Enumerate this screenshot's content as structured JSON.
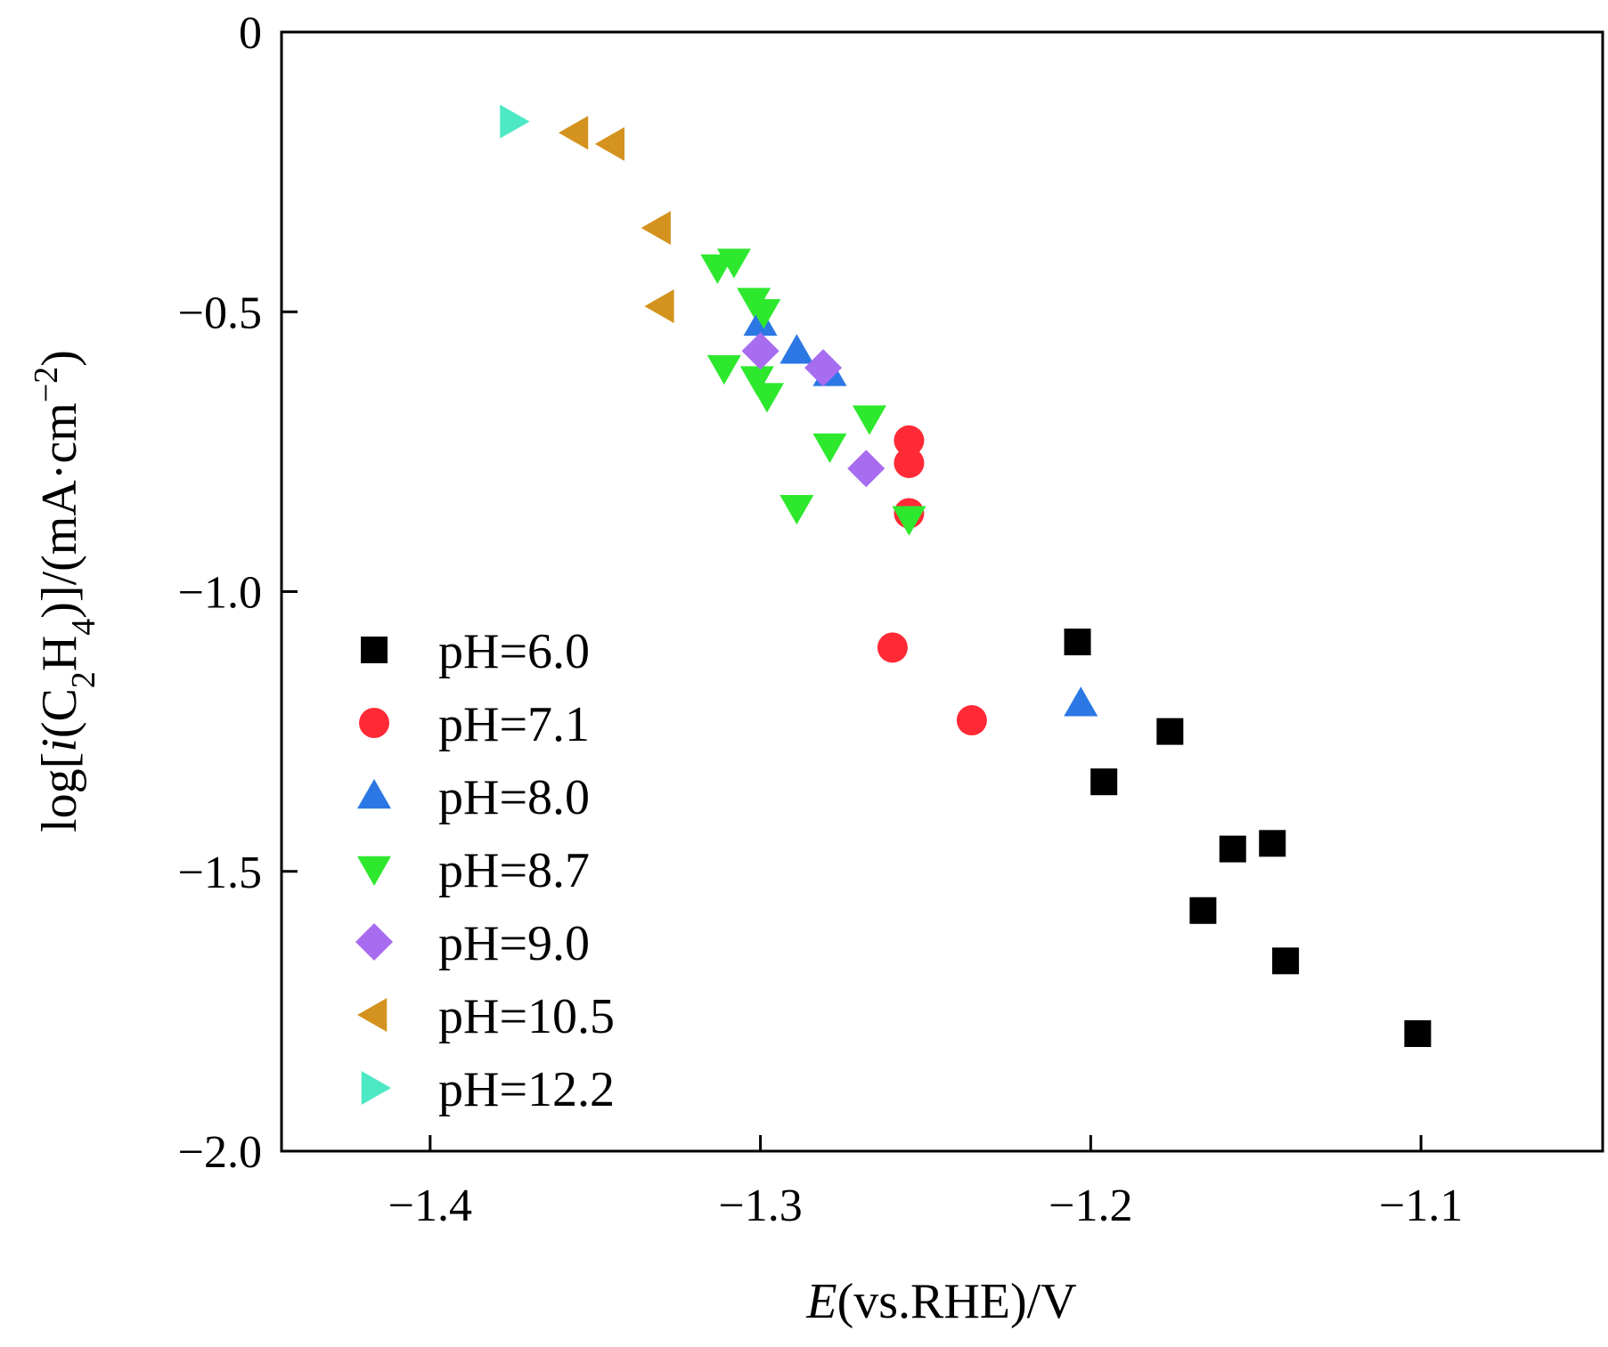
{
  "chart_data": {
    "type": "scatter",
    "xlabel": {
      "italic": "E",
      "rest": "(vs.RHE)/V"
    },
    "ylabel": {
      "prefix": "log[",
      "italic": "i",
      "open": "(C",
      "sub1": "2",
      "mid": "H",
      "sub2": "4",
      "close": ")]/(mA·cm",
      "sup": "−2",
      "end": ")"
    },
    "xlim": [
      -1.445,
      -1.045
    ],
    "ylim": [
      -2.0,
      0
    ],
    "x_ticks": [
      -1.4,
      -1.3,
      -1.2,
      -1.1
    ],
    "x_tick_labels": [
      "−1.4",
      "−1.3",
      "−1.2",
      "−1.1"
    ],
    "y_ticks": [
      0,
      -0.5,
      -1.0,
      -1.5,
      -2.0
    ],
    "y_tick_labels": [
      "0",
      "−0.5",
      "−1.0",
      "−1.5",
      "−2.0"
    ],
    "grid": false,
    "legend_position": "lower-left",
    "series": [
      {
        "name": "pH=6.0",
        "marker": "square",
        "color": "#000000",
        "points": [
          [
            -1.204,
            -1.09
          ],
          [
            -1.196,
            -1.34
          ],
          [
            -1.176,
            -1.25
          ],
          [
            -1.166,
            -1.57
          ],
          [
            -1.157,
            -1.46
          ],
          [
            -1.145,
            -1.45
          ],
          [
            -1.141,
            -1.66
          ],
          [
            -1.101,
            -1.79
          ]
        ]
      },
      {
        "name": "pH=7.1",
        "marker": "circle",
        "color": "#ff2a35",
        "points": [
          [
            -1.255,
            -0.73
          ],
          [
            -1.255,
            -0.77
          ],
          [
            -1.255,
            -0.86
          ],
          [
            -1.26,
            -1.1
          ],
          [
            -1.236,
            -1.23
          ]
        ]
      },
      {
        "name": "pH=8.0",
        "marker": "triangle-up",
        "color": "#2b78e4",
        "points": [
          [
            -1.3,
            -0.52
          ],
          [
            -1.289,
            -0.57
          ],
          [
            -1.279,
            -0.61
          ],
          [
            -1.203,
            -1.2
          ]
        ]
      },
      {
        "name": "pH=8.7",
        "marker": "triangle-down",
        "color": "#2ee82e",
        "points": [
          [
            -1.313,
            -0.42
          ],
          [
            -1.308,
            -0.41
          ],
          [
            -1.302,
            -0.48
          ],
          [
            -1.299,
            -0.5
          ],
          [
            -1.311,
            -0.6
          ],
          [
            -1.301,
            -0.62
          ],
          [
            -1.298,
            -0.65
          ],
          [
            -1.267,
            -0.69
          ],
          [
            -1.279,
            -0.74
          ],
          [
            -1.289,
            -0.85
          ],
          [
            -1.255,
            -0.87
          ]
        ]
      },
      {
        "name": "pH=9.0",
        "marker": "diamond",
        "color": "#a86cf0",
        "points": [
          [
            -1.3,
            -0.57
          ],
          [
            -1.281,
            -0.6
          ],
          [
            -1.268,
            -0.78
          ]
        ]
      },
      {
        "name": "pH=10.5",
        "marker": "triangle-left",
        "color": "#d4931f",
        "points": [
          [
            -1.356,
            -0.18
          ],
          [
            -1.345,
            -0.2
          ],
          [
            -1.331,
            -0.35
          ],
          [
            -1.33,
            -0.49
          ]
        ]
      },
      {
        "name": "pH=12.2",
        "marker": "triangle-right",
        "color": "#4de8c4",
        "points": [
          [
            -1.375,
            -0.16
          ]
        ]
      }
    ]
  }
}
